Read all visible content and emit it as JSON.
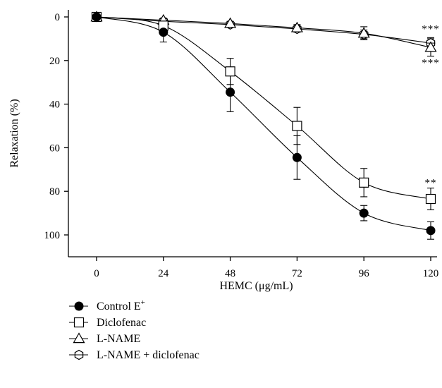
{
  "chart_data": {
    "type": "line",
    "xlabel": "HEMC (μg/mL)",
    "ylabel": "Relaxation (%)",
    "x": [
      0,
      24,
      48,
      72,
      96,
      120
    ],
    "x_ticks": [
      "0",
      "24",
      "48",
      "72",
      "96",
      "120"
    ],
    "y_ticks": [
      "0",
      "20",
      "40",
      "60",
      "80",
      "100"
    ],
    "xlim": [
      -12,
      124
    ],
    "ylim": [
      0,
      110
    ],
    "y_inverted": true,
    "grid": false,
    "legend_position": "bottom-left",
    "series": [
      {
        "name": "Control E⁺",
        "marker": "filled-circle",
        "values": [
          0,
          7,
          34.5,
          64.5,
          90,
          98
        ],
        "errors": [
          0,
          4.5,
          9,
          10,
          3.5,
          4
        ]
      },
      {
        "name": "Diclofenac",
        "marker": "open-square",
        "values": [
          0,
          4,
          25,
          50,
          76,
          83.5
        ],
        "errors": [
          0,
          2,
          6,
          8.5,
          6.5,
          5
        ]
      },
      {
        "name": "L-NAME",
        "marker": "open-triangle",
        "values": [
          0,
          1.5,
          3,
          5,
          7.5,
          14
        ],
        "errors": [
          0,
          1,
          1,
          1.5,
          3,
          4
        ]
      },
      {
        "name": "L-NAME + diclofenac",
        "marker": "open-hexagon",
        "values": [
          0,
          2,
          3.5,
          5.5,
          8,
          12
        ],
        "errors": [
          0,
          1,
          1,
          1.5,
          2,
          2.5
        ]
      }
    ],
    "annotations": [
      {
        "text": "***",
        "x": 120,
        "y": 7,
        "note": "above L-NAME + diclofenac"
      },
      {
        "text": "***",
        "x": 120,
        "y": 22.5,
        "note": "below L-NAME"
      },
      {
        "text": "**",
        "x": 120,
        "y": 77.5,
        "note": "above Diclofenac"
      }
    ]
  },
  "legend": {
    "items": [
      {
        "label": "Control E",
        "sup": "+"
      },
      {
        "label": "Diclofenac",
        "sup": ""
      },
      {
        "label": "L-NAME",
        "sup": ""
      },
      {
        "label": "L-NAME + diclofenac",
        "sup": ""
      }
    ]
  }
}
